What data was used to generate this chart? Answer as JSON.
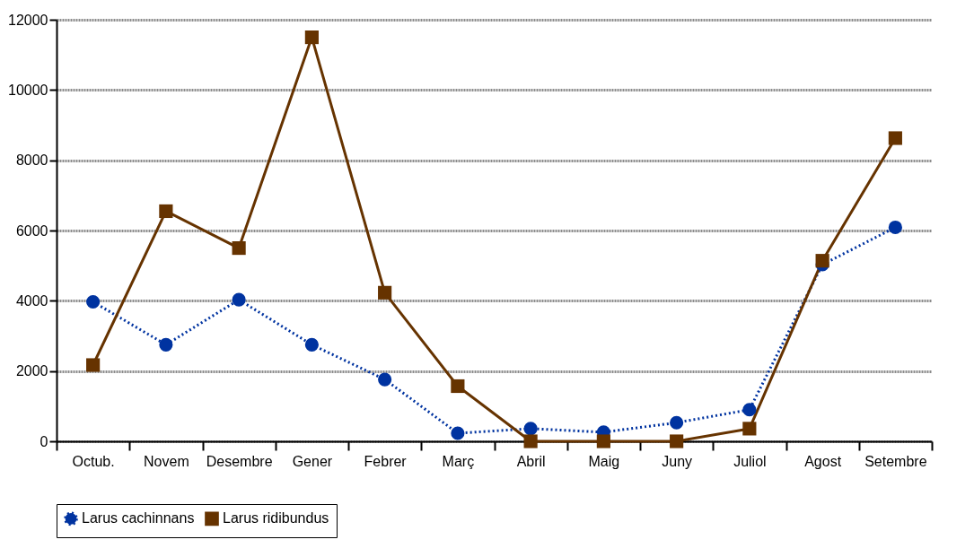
{
  "chart_data": {
    "type": "line",
    "categories": [
      "Octub.",
      "Novem",
      "Desembre",
      "Gener",
      "Febrer",
      "Març",
      "Abril",
      "Maig",
      "Juny",
      "Juliol",
      "Agost",
      "Setembre"
    ],
    "series": [
      {
        "name": "Larus cachinnans",
        "color": "#0033a0",
        "marker": "circle",
        "line_style": "dotted",
        "values": [
          3970,
          2750,
          4030,
          2750,
          1760,
          230,
          360,
          260,
          530,
          900,
          5030,
          6090
        ]
      },
      {
        "name": "Larus ridibundus",
        "color": "#663300",
        "marker": "square",
        "line_style": "solid",
        "values": [
          2170,
          6550,
          5500,
          11500,
          4230,
          1570,
          0,
          0,
          0,
          360,
          5140,
          8630
        ]
      }
    ],
    "ylim": [
      0,
      12000
    ],
    "yticks": [
      0,
      2000,
      4000,
      6000,
      8000,
      10000,
      12000
    ],
    "grid": "y",
    "legend": "bottom"
  }
}
